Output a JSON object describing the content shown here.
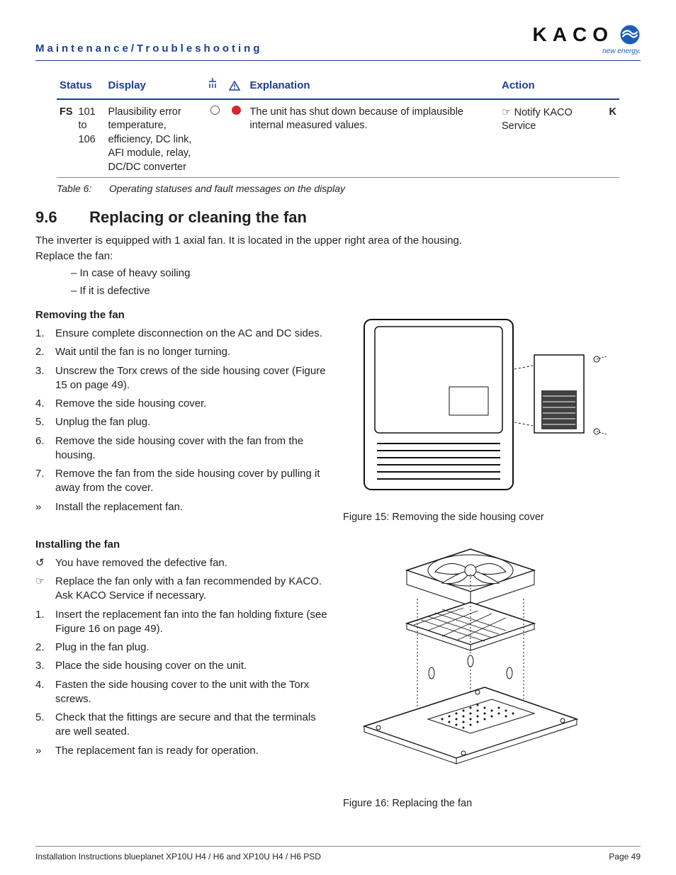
{
  "header": {
    "section_title": "Maintenance/Troubleshooting",
    "logo_text": "KACO",
    "logo_tag": "new energy.",
    "logo_color": "#1b5fb5"
  },
  "table": {
    "headers": {
      "status": "Status",
      "display": "Display",
      "explanation": "Explanation",
      "action": "Action"
    },
    "row": {
      "fs": "FS",
      "code": "101 to 106",
      "display_text": "Plausibility error temperature, efficiency, DC link, AFI module, relay, DC/DC converter",
      "explanation": "The unit has shut down because of implausible internal measured values.",
      "action_text": "Notify KACO Service",
      "k": "K"
    },
    "caption_label": "Table 6:",
    "caption_text": "Operating statuses and fault messages on the display"
  },
  "section96": {
    "number": "9.6",
    "title": "Replacing or cleaning the fan",
    "intro1": "The inverter is equipped with 1 axial fan. It is located in the upper right area of the housing.",
    "intro2": "Replace the fan:",
    "bullets": [
      "In case of heavy soiling",
      "If it is defective"
    ]
  },
  "removing": {
    "heading": "Removing the fan",
    "steps": [
      {
        "m": "1.",
        "t": "Ensure complete disconnection on the AC and DC sides."
      },
      {
        "m": "2.",
        "t": "Wait until the fan is no longer turning."
      },
      {
        "m": "3.",
        "t": "Unscrew the Torx crews of the side housing cover (Figure 15 on page 49)."
      },
      {
        "m": "4.",
        "t": "Remove the side housing cover."
      },
      {
        "m": "5.",
        "t": "Unplug the fan plug."
      },
      {
        "m": "6.",
        "t": "Remove the side housing cover with the fan from the housing."
      },
      {
        "m": "7.",
        "t": "Remove the fan from the side housing cover by pulling it away from the cover."
      },
      {
        "m": "»",
        "t": "Install the replacement fan."
      }
    ]
  },
  "installing": {
    "heading": "Installing the fan",
    "steps": [
      {
        "m": "↺",
        "t": "You have removed the defective fan."
      },
      {
        "m": "☞",
        "t": "Replace the fan only with a fan recommended by KACO. Ask KACO Service if necessary."
      },
      {
        "m": "1.",
        "t": "Insert the replacement fan into the fan holding fixture (see Figure 16 on page 49)."
      },
      {
        "m": "2.",
        "t": "Plug in the fan plug."
      },
      {
        "m": "3.",
        "t": "Place the side housing cover on the unit."
      },
      {
        "m": "4.",
        "t": "Fasten the side housing cover to the unit with the Torx screws."
      },
      {
        "m": "5.",
        "t": "Check that the fittings are secure and that the terminals are well seated."
      },
      {
        "m": "»",
        "t": "The replacement fan is ready for operation."
      }
    ]
  },
  "figures": {
    "fig15": "Figure 15: Removing the side housing cover",
    "fig16": "Figure 16:  Replacing the fan"
  },
  "footer": {
    "left": "Installation Instructions blueplanet XP10U H4 / H6 and XP10U H4 / H6 PSD",
    "right": "Page 49"
  },
  "colors": {
    "brand_blue": "#1b3e8f",
    "red": "#d4282a",
    "text": "#231f20"
  }
}
